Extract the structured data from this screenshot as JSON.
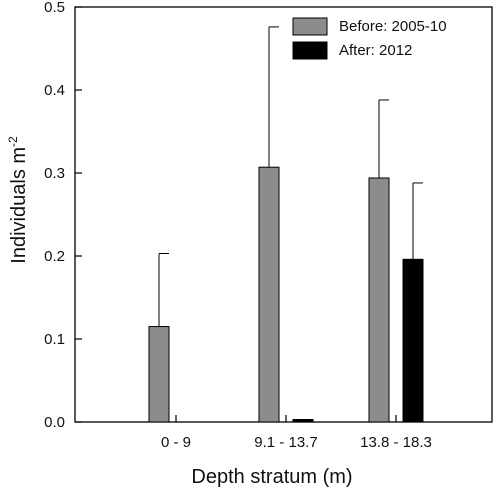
{
  "chart_data": {
    "type": "bar",
    "title": "",
    "xlabel": "Depth stratum (m)",
    "ylabel": {
      "text": "Individuals m",
      "superscript": "-2"
    },
    "ylim": [
      0,
      0.5
    ],
    "yticks": [
      "0.0",
      "0.1",
      "0.2",
      "0.3",
      "0.4",
      "0.5"
    ],
    "categories": [
      "0 - 9",
      "9.1 - 13.7",
      "13.8 - 18.3"
    ],
    "series": [
      {
        "name": "Before: 2005-10",
        "color": "#8c8c8c",
        "values": [
          0.115,
          0.307,
          0.294
        ],
        "error_upper": [
          0.203,
          0.476,
          0.388
        ]
      },
      {
        "name": "After: 2012",
        "color": "#000000",
        "values": [
          0.0,
          0.003,
          0.196
        ],
        "error_upper": [
          0.0,
          0.003,
          0.288
        ]
      }
    ],
    "legend_position": "top-right",
    "grid": false
  }
}
